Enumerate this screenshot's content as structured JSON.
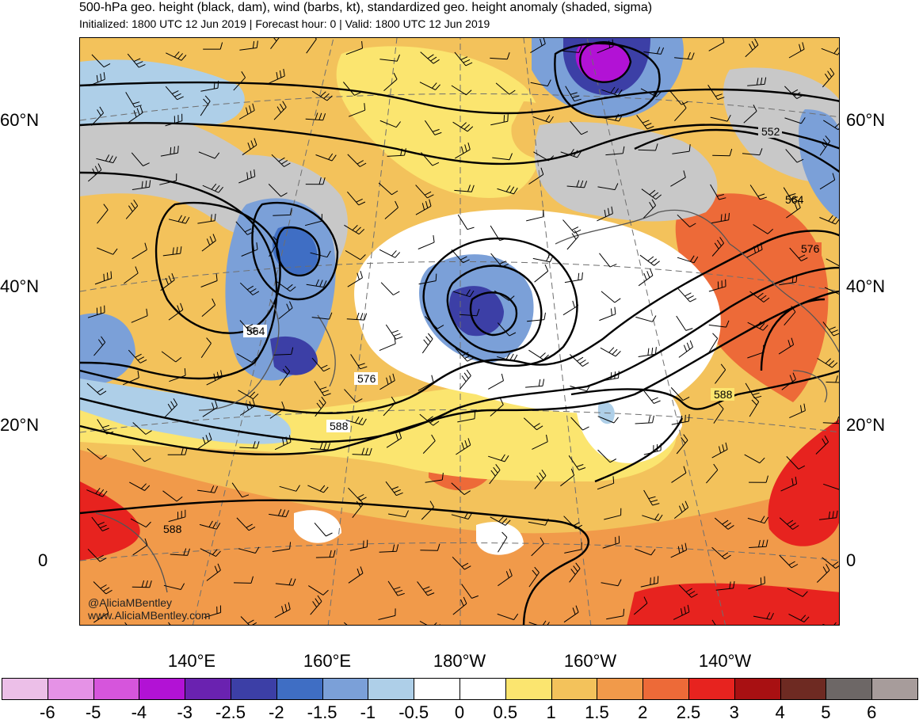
{
  "title": "500-hPa geo. height (black, dam), wind (barbs, kt), standardized geo. height anomaly (shaded, sigma)",
  "subtitle": "Initialized: 1800 UTC 12 Jun 2019 | Forecast hour: 0 | Valid: 1800 UTC 12 Jun 2019",
  "lat_labels_left": [
    "60°N",
    "40°N",
    "20°N",
    "0"
  ],
  "lat_labels_right": [
    "60°N",
    "40°N",
    "20°N",
    "0"
  ],
  "lon_labels": [
    "140°E",
    "160°E",
    "180°W",
    "160°W",
    "140°W"
  ],
  "contour_labels": [
    "552",
    "564",
    "576",
    "564",
    "576",
    "588",
    "588",
    "588"
  ],
  "watermark": {
    "handle": "@AliciaMBentley",
    "site": "www.AliciaMBentley.com"
  },
  "colorbar": {
    "ticks": [
      "-6",
      "-5",
      "-4",
      "-3",
      "-2.5",
      "-2",
      "-1.5",
      "-1",
      "-0.5",
      "0",
      "0.5",
      "1",
      "1.5",
      "2",
      "2.5",
      "3",
      "4",
      "5",
      "6"
    ],
    "colors": [
      "#ecbfe8",
      "#e592e6",
      "#d655dc",
      "#b212d5",
      "#6a22b0",
      "#3c3fa6",
      "#3f6ec4",
      "#7ba0d8",
      "#aecfe8",
      "#ffffff",
      "#ffffff",
      "#fbe56f",
      "#f3c25b",
      "#f19a4a",
      "#ed6a38",
      "#e7231f",
      "#a81012",
      "#6e2a22",
      "#6d6766",
      "#a79c9b"
    ]
  },
  "colors": {
    "land_gray": "#c8c8c8",
    "contour": "#000000",
    "coast": "#555555"
  }
}
